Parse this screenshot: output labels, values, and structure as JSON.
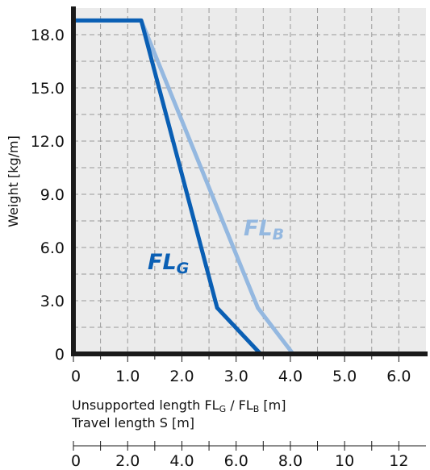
{
  "chart_data": {
    "type": "line",
    "ylabel": "Weight  [kg/m]",
    "xlabel_line1_parts": [
      "Unsupported length FL",
      "G",
      " / FL",
      "B",
      " [m]"
    ],
    "xlabel_line2": "Travel length S  [m]",
    "xlim": [
      0,
      6.5
    ],
    "ylim": [
      0,
      19.5
    ],
    "x_ticks": [
      "0",
      "1.0",
      "2.0",
      "3.0",
      "4.0",
      "5.0",
      "6.0"
    ],
    "y_ticks": [
      "0",
      "3.0",
      "6.0",
      "9.0",
      "12.0",
      "15.0",
      "18.0"
    ],
    "secondary_x_ticks": [
      "0",
      "2.0",
      "4.0",
      "6.0",
      "8.0",
      "10",
      "12"
    ],
    "grid": true,
    "series": [
      {
        "name_base": "FL",
        "name_sub": "G",
        "color": "#0a5fb4",
        "x": [
          0,
          1.25,
          2.65,
          3.45
        ],
        "y": [
          18.8,
          18.8,
          2.6,
          0
        ]
      },
      {
        "name_base": "FL",
        "name_sub": "B",
        "color": "#94b8e0",
        "x": [
          0,
          1.25,
          3.4,
          4.05
        ],
        "y": [
          18.8,
          18.8,
          2.6,
          0
        ]
      }
    ]
  }
}
